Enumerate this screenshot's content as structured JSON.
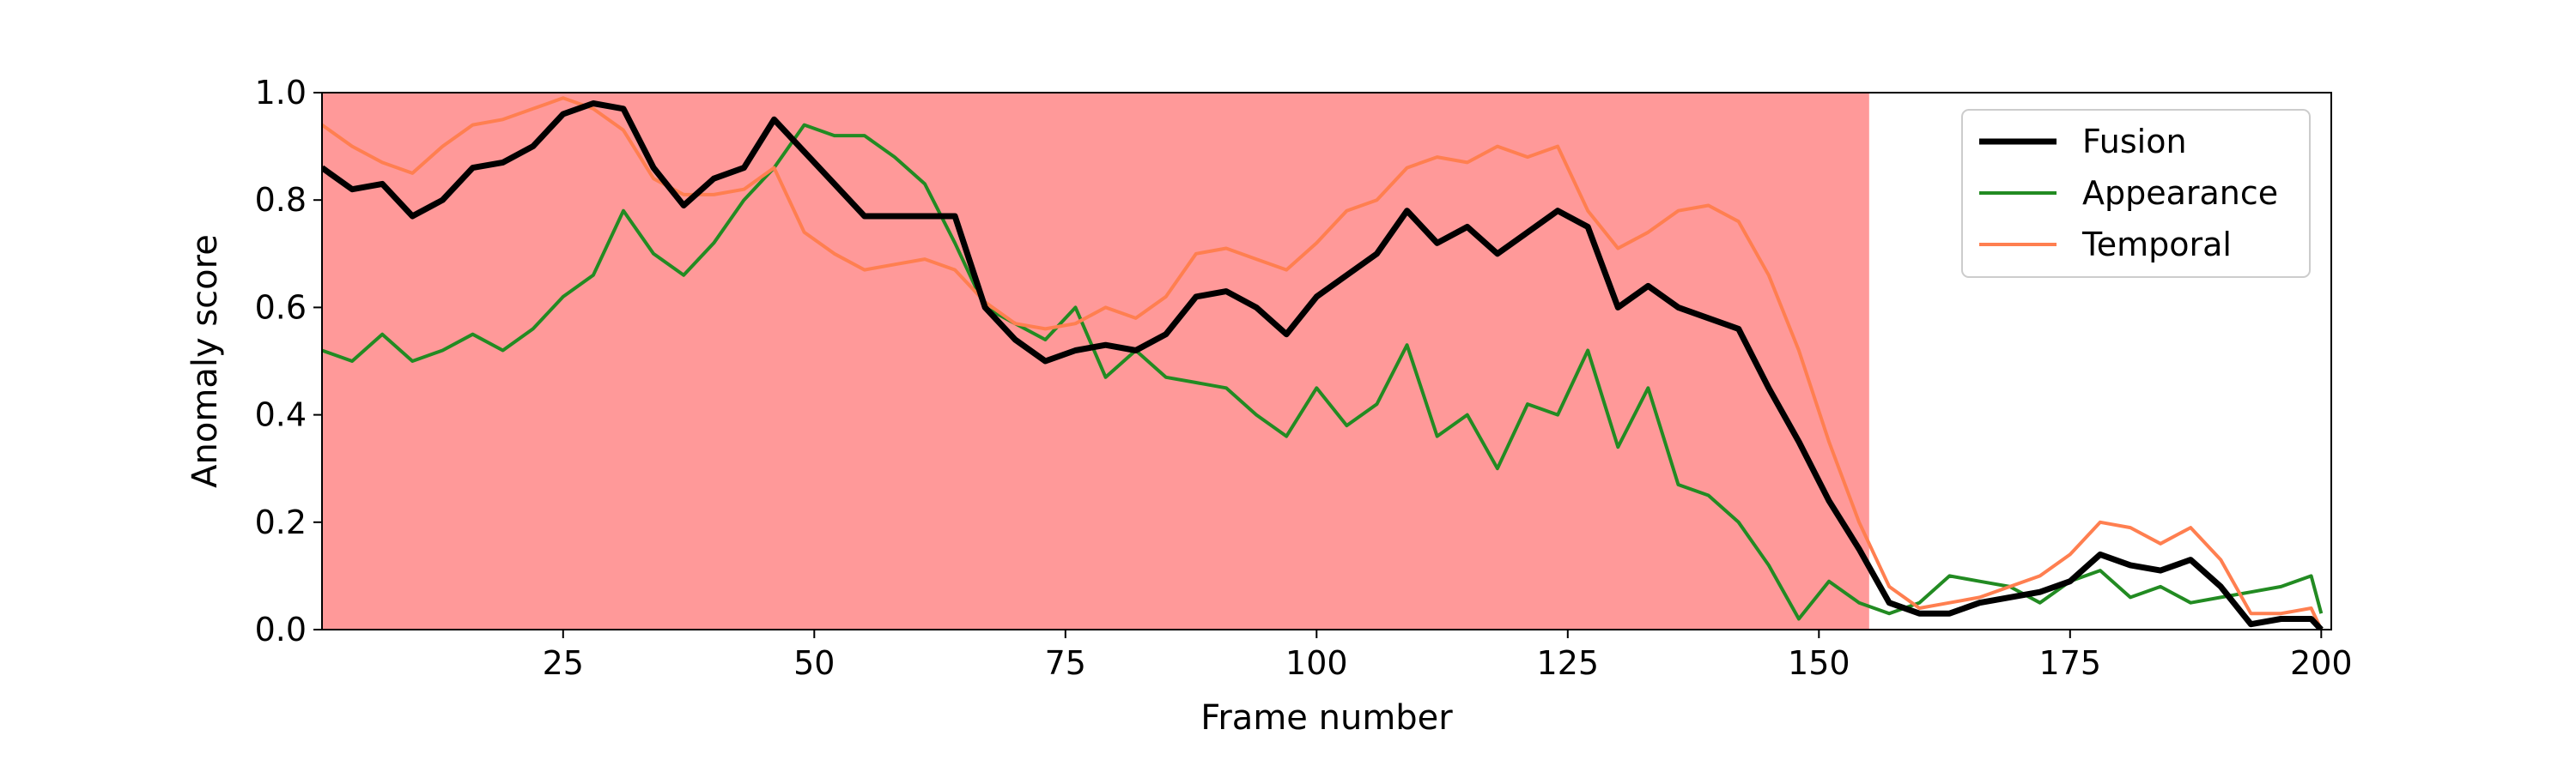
{
  "chart_data": {
    "type": "line",
    "xlabel": "Frame number",
    "ylabel": "Anomaly score",
    "xlim": [
      1,
      201
    ],
    "ylim": [
      0,
      1
    ],
    "xticks": [
      25,
      50,
      75,
      100,
      125,
      150,
      175,
      200
    ],
    "yticks": [
      0.0,
      0.2,
      0.4,
      0.6,
      0.8,
      1.0
    ],
    "ytick_labels": [
      "0.0",
      "0.2",
      "0.4",
      "0.6",
      "0.8",
      "1.0"
    ],
    "grid": false,
    "legend_position": "top-right",
    "shaded_region": {
      "x_start": 1,
      "x_end": 155,
      "color": "#ff9999"
    },
    "series": [
      {
        "name": "Fusion",
        "color": "#000000",
        "x": [
          1,
          4,
          7,
          10,
          13,
          16,
          19,
          22,
          25,
          28,
          31,
          34,
          37,
          40,
          43,
          46,
          49,
          52,
          55,
          58,
          61,
          64,
          67,
          70,
          73,
          76,
          79,
          82,
          85,
          88,
          91,
          94,
          97,
          100,
          103,
          106,
          109,
          112,
          115,
          118,
          121,
          124,
          127,
          130,
          133,
          136,
          139,
          142,
          145,
          148,
          151,
          154,
          157,
          160,
          163,
          166,
          169,
          172,
          175,
          178,
          181,
          184,
          187,
          190,
          193,
          196,
          199,
          200
        ],
        "y": [
          0.86,
          0.82,
          0.83,
          0.77,
          0.8,
          0.86,
          0.87,
          0.9,
          0.96,
          0.98,
          0.97,
          0.86,
          0.79,
          0.84,
          0.86,
          0.95,
          0.89,
          0.83,
          0.77,
          0.77,
          0.77,
          0.77,
          0.6,
          0.54,
          0.5,
          0.52,
          0.53,
          0.52,
          0.55,
          0.62,
          0.63,
          0.6,
          0.55,
          0.62,
          0.66,
          0.7,
          0.78,
          0.72,
          0.75,
          0.7,
          0.74,
          0.78,
          0.75,
          0.6,
          0.64,
          0.6,
          0.58,
          0.56,
          0.45,
          0.35,
          0.24,
          0.15,
          0.05,
          0.03,
          0.03,
          0.05,
          0.06,
          0.07,
          0.09,
          0.14,
          0.12,
          0.11,
          0.13,
          0.08,
          0.01,
          0.02,
          0.02,
          0.0
        ]
      },
      {
        "name": "Appearance",
        "color": "#228b22",
        "x": [
          1,
          4,
          7,
          10,
          13,
          16,
          19,
          22,
          25,
          28,
          31,
          34,
          37,
          40,
          43,
          46,
          49,
          52,
          55,
          58,
          61,
          64,
          67,
          70,
          73,
          76,
          79,
          82,
          85,
          88,
          91,
          94,
          97,
          100,
          103,
          106,
          109,
          112,
          115,
          118,
          121,
          124,
          127,
          130,
          133,
          136,
          139,
          142,
          145,
          148,
          151,
          154,
          157,
          160,
          163,
          166,
          169,
          172,
          175,
          178,
          181,
          184,
          187,
          190,
          193,
          196,
          199,
          200
        ],
        "y": [
          0.52,
          0.5,
          0.55,
          0.5,
          0.52,
          0.55,
          0.52,
          0.56,
          0.62,
          0.66,
          0.78,
          0.7,
          0.66,
          0.72,
          0.8,
          0.86,
          0.94,
          0.92,
          0.92,
          0.88,
          0.83,
          0.72,
          0.6,
          0.57,
          0.54,
          0.6,
          0.47,
          0.52,
          0.47,
          0.46,
          0.45,
          0.4,
          0.36,
          0.45,
          0.38,
          0.42,
          0.53,
          0.36,
          0.4,
          0.3,
          0.42,
          0.4,
          0.52,
          0.34,
          0.45,
          0.27,
          0.25,
          0.2,
          0.12,
          0.02,
          0.09,
          0.05,
          0.03,
          0.05,
          0.1,
          0.09,
          0.08,
          0.05,
          0.09,
          0.11,
          0.06,
          0.08,
          0.05,
          0.06,
          0.07,
          0.08,
          0.1,
          0.03
        ]
      },
      {
        "name": "Temporal",
        "color": "#ff7f50",
        "x": [
          1,
          4,
          7,
          10,
          13,
          16,
          19,
          22,
          25,
          28,
          31,
          34,
          37,
          40,
          43,
          46,
          49,
          52,
          55,
          58,
          61,
          64,
          67,
          70,
          73,
          76,
          79,
          82,
          85,
          88,
          91,
          94,
          97,
          100,
          103,
          106,
          109,
          112,
          115,
          118,
          121,
          124,
          127,
          130,
          133,
          136,
          139,
          142,
          145,
          148,
          151,
          154,
          157,
          160,
          163,
          166,
          169,
          172,
          175,
          178,
          181,
          184,
          187,
          190,
          193,
          196,
          199,
          200
        ],
        "y": [
          0.94,
          0.9,
          0.87,
          0.85,
          0.9,
          0.94,
          0.95,
          0.97,
          0.99,
          0.97,
          0.93,
          0.84,
          0.81,
          0.81,
          0.82,
          0.86,
          0.74,
          0.7,
          0.67,
          0.68,
          0.69,
          0.67,
          0.61,
          0.57,
          0.56,
          0.57,
          0.6,
          0.58,
          0.62,
          0.7,
          0.71,
          0.69,
          0.67,
          0.72,
          0.78,
          0.8,
          0.86,
          0.88,
          0.87,
          0.9,
          0.88,
          0.9,
          0.78,
          0.71,
          0.74,
          0.78,
          0.79,
          0.76,
          0.66,
          0.52,
          0.35,
          0.2,
          0.08,
          0.04,
          0.05,
          0.06,
          0.08,
          0.1,
          0.14,
          0.2,
          0.19,
          0.16,
          0.19,
          0.13,
          0.03,
          0.03,
          0.04,
          0.0
        ]
      }
    ]
  }
}
